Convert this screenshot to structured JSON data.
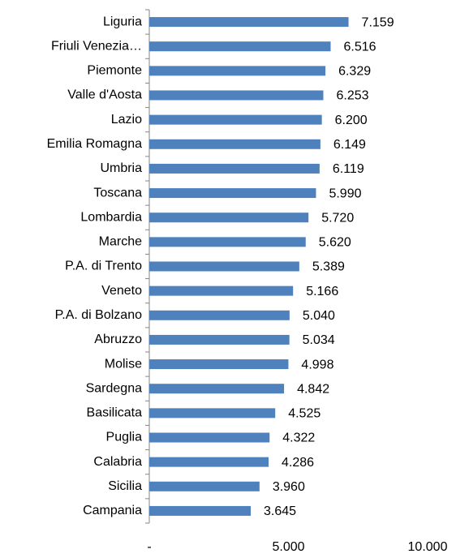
{
  "chart_data": {
    "type": "bar",
    "orientation": "horizontal",
    "categories": [
      "Liguria",
      "Friuli Venezia…",
      "Piemonte",
      "Valle d'Aosta",
      "Lazio",
      "Emilia Romagna",
      "Umbria",
      "Toscana",
      "Lombardia",
      "Marche",
      "P.A. di Trento",
      "Veneto",
      "P.A. di Bolzano",
      "Abruzzo",
      "Molise",
      "Sardegna",
      "Basilicata",
      "Puglia",
      "Calabria",
      "Sicilia",
      "Campania"
    ],
    "values": [
      7159,
      6516,
      6329,
      6253,
      6200,
      6149,
      6119,
      5990,
      5720,
      5620,
      5389,
      5166,
      5040,
      5034,
      4998,
      4842,
      4525,
      4322,
      4286,
      3960,
      3645
    ],
    "value_labels": [
      "7.159",
      "6.516",
      "6.329",
      "6.253",
      "6.200",
      "6.149",
      "6.119",
      "5.990",
      "5.720",
      "5.620",
      "5.389",
      "5.166",
      "5.040",
      "5.034",
      "4.998",
      "4.842",
      "4.525",
      "4.322",
      "4.286",
      "3.960",
      "3.645"
    ],
    "color": "#4f81bd",
    "xlim": [
      0,
      10000
    ],
    "xticks": [
      {
        "value": 0,
        "label": "-"
      },
      {
        "value": 5000,
        "label": "5.000"
      },
      {
        "value": 10000,
        "label": "10.000"
      }
    ],
    "grid": false
  }
}
